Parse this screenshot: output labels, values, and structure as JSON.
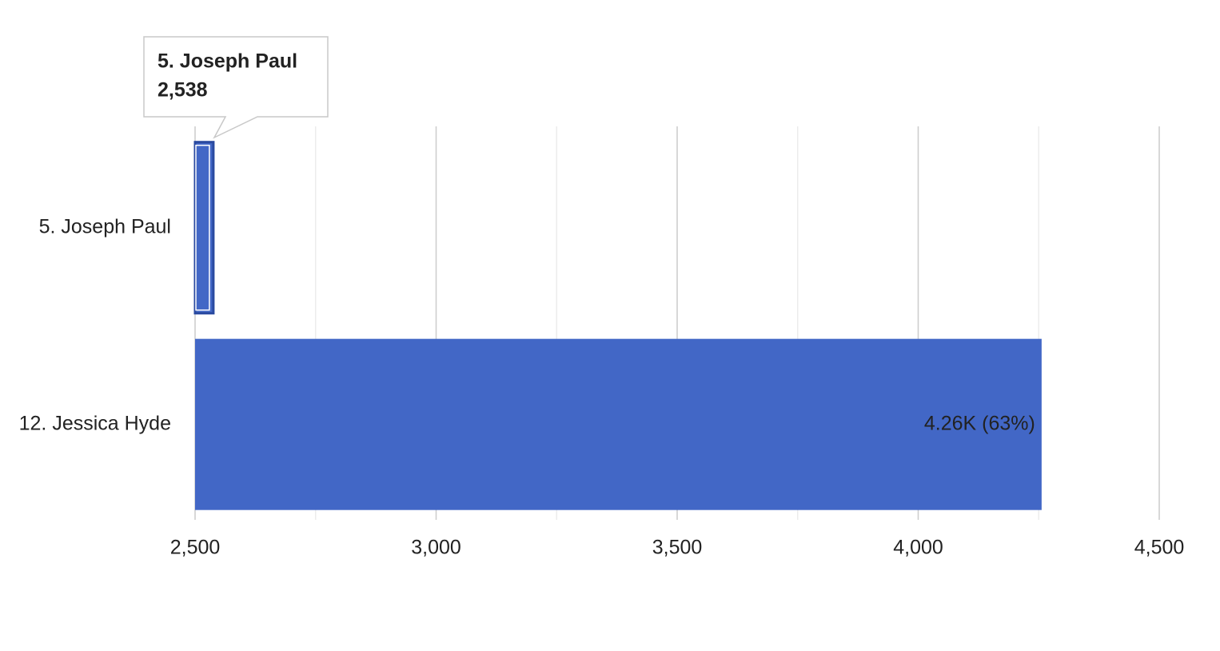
{
  "chart_data": {
    "type": "hbar",
    "categories": [
      "5. Joseph Paul",
      "12. Jessica Hyde"
    ],
    "values": [
      2538,
      4256
    ],
    "value_labels": [
      null,
      "4.26K (63%)"
    ],
    "color": "#4267c6",
    "xlim": [
      2500,
      4500
    ],
    "xticks": [
      {
        "value": 2500,
        "label": "2,500"
      },
      {
        "value": 3000,
        "label": "3,000"
      },
      {
        "value": 3500,
        "label": "3,500"
      },
      {
        "value": 4000,
        "label": "4,000"
      },
      {
        "value": 4500,
        "label": "4,500"
      }
    ],
    "xminorticks": [
      2750,
      3250,
      3750,
      4250
    ],
    "grid": true,
    "tooltip": {
      "title": "5. Joseph Paul",
      "text": "2,538"
    }
  }
}
